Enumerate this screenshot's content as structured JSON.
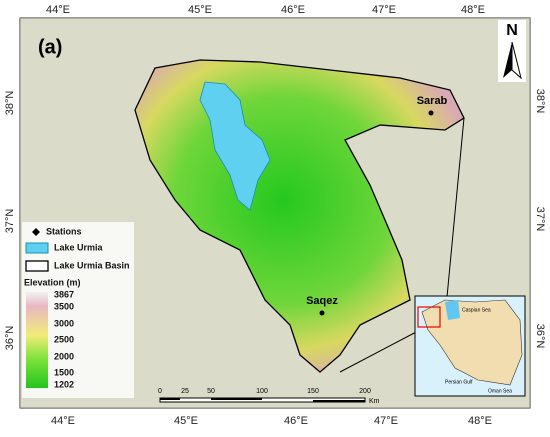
{
  "map": {
    "panel_label": "(a)",
    "north": "N",
    "lon_labels_top": [
      "44°E",
      "45°E",
      "46°E",
      "47°E",
      "48°E"
    ],
    "lon_labels_bottom": [
      "44°E",
      "45°E",
      "46°E",
      "47°E",
      "48°E"
    ],
    "lat_labels_left": [
      "38°N",
      "37°N",
      "36°N"
    ],
    "lat_labels_right": [
      "38°N",
      "37°N",
      "36°N"
    ],
    "stations": [
      "Sarab",
      "Saqez"
    ],
    "legend": {
      "items": [
        "Stations",
        "Lake Urmia",
        "Lake Urmia Basin"
      ],
      "elevation_title": "Elevation (m)",
      "elevation_labels": [
        3867,
        3500,
        3000,
        2500,
        2000,
        1500,
        1202
      ]
    },
    "scale_bar": {
      "ticks": [
        0,
        25,
        50,
        100,
        150,
        200
      ],
      "unit": "Km"
    },
    "inset_labels": [
      "Caspian Sea",
      "Persian Gulf",
      "Oman Sea"
    ]
  }
}
